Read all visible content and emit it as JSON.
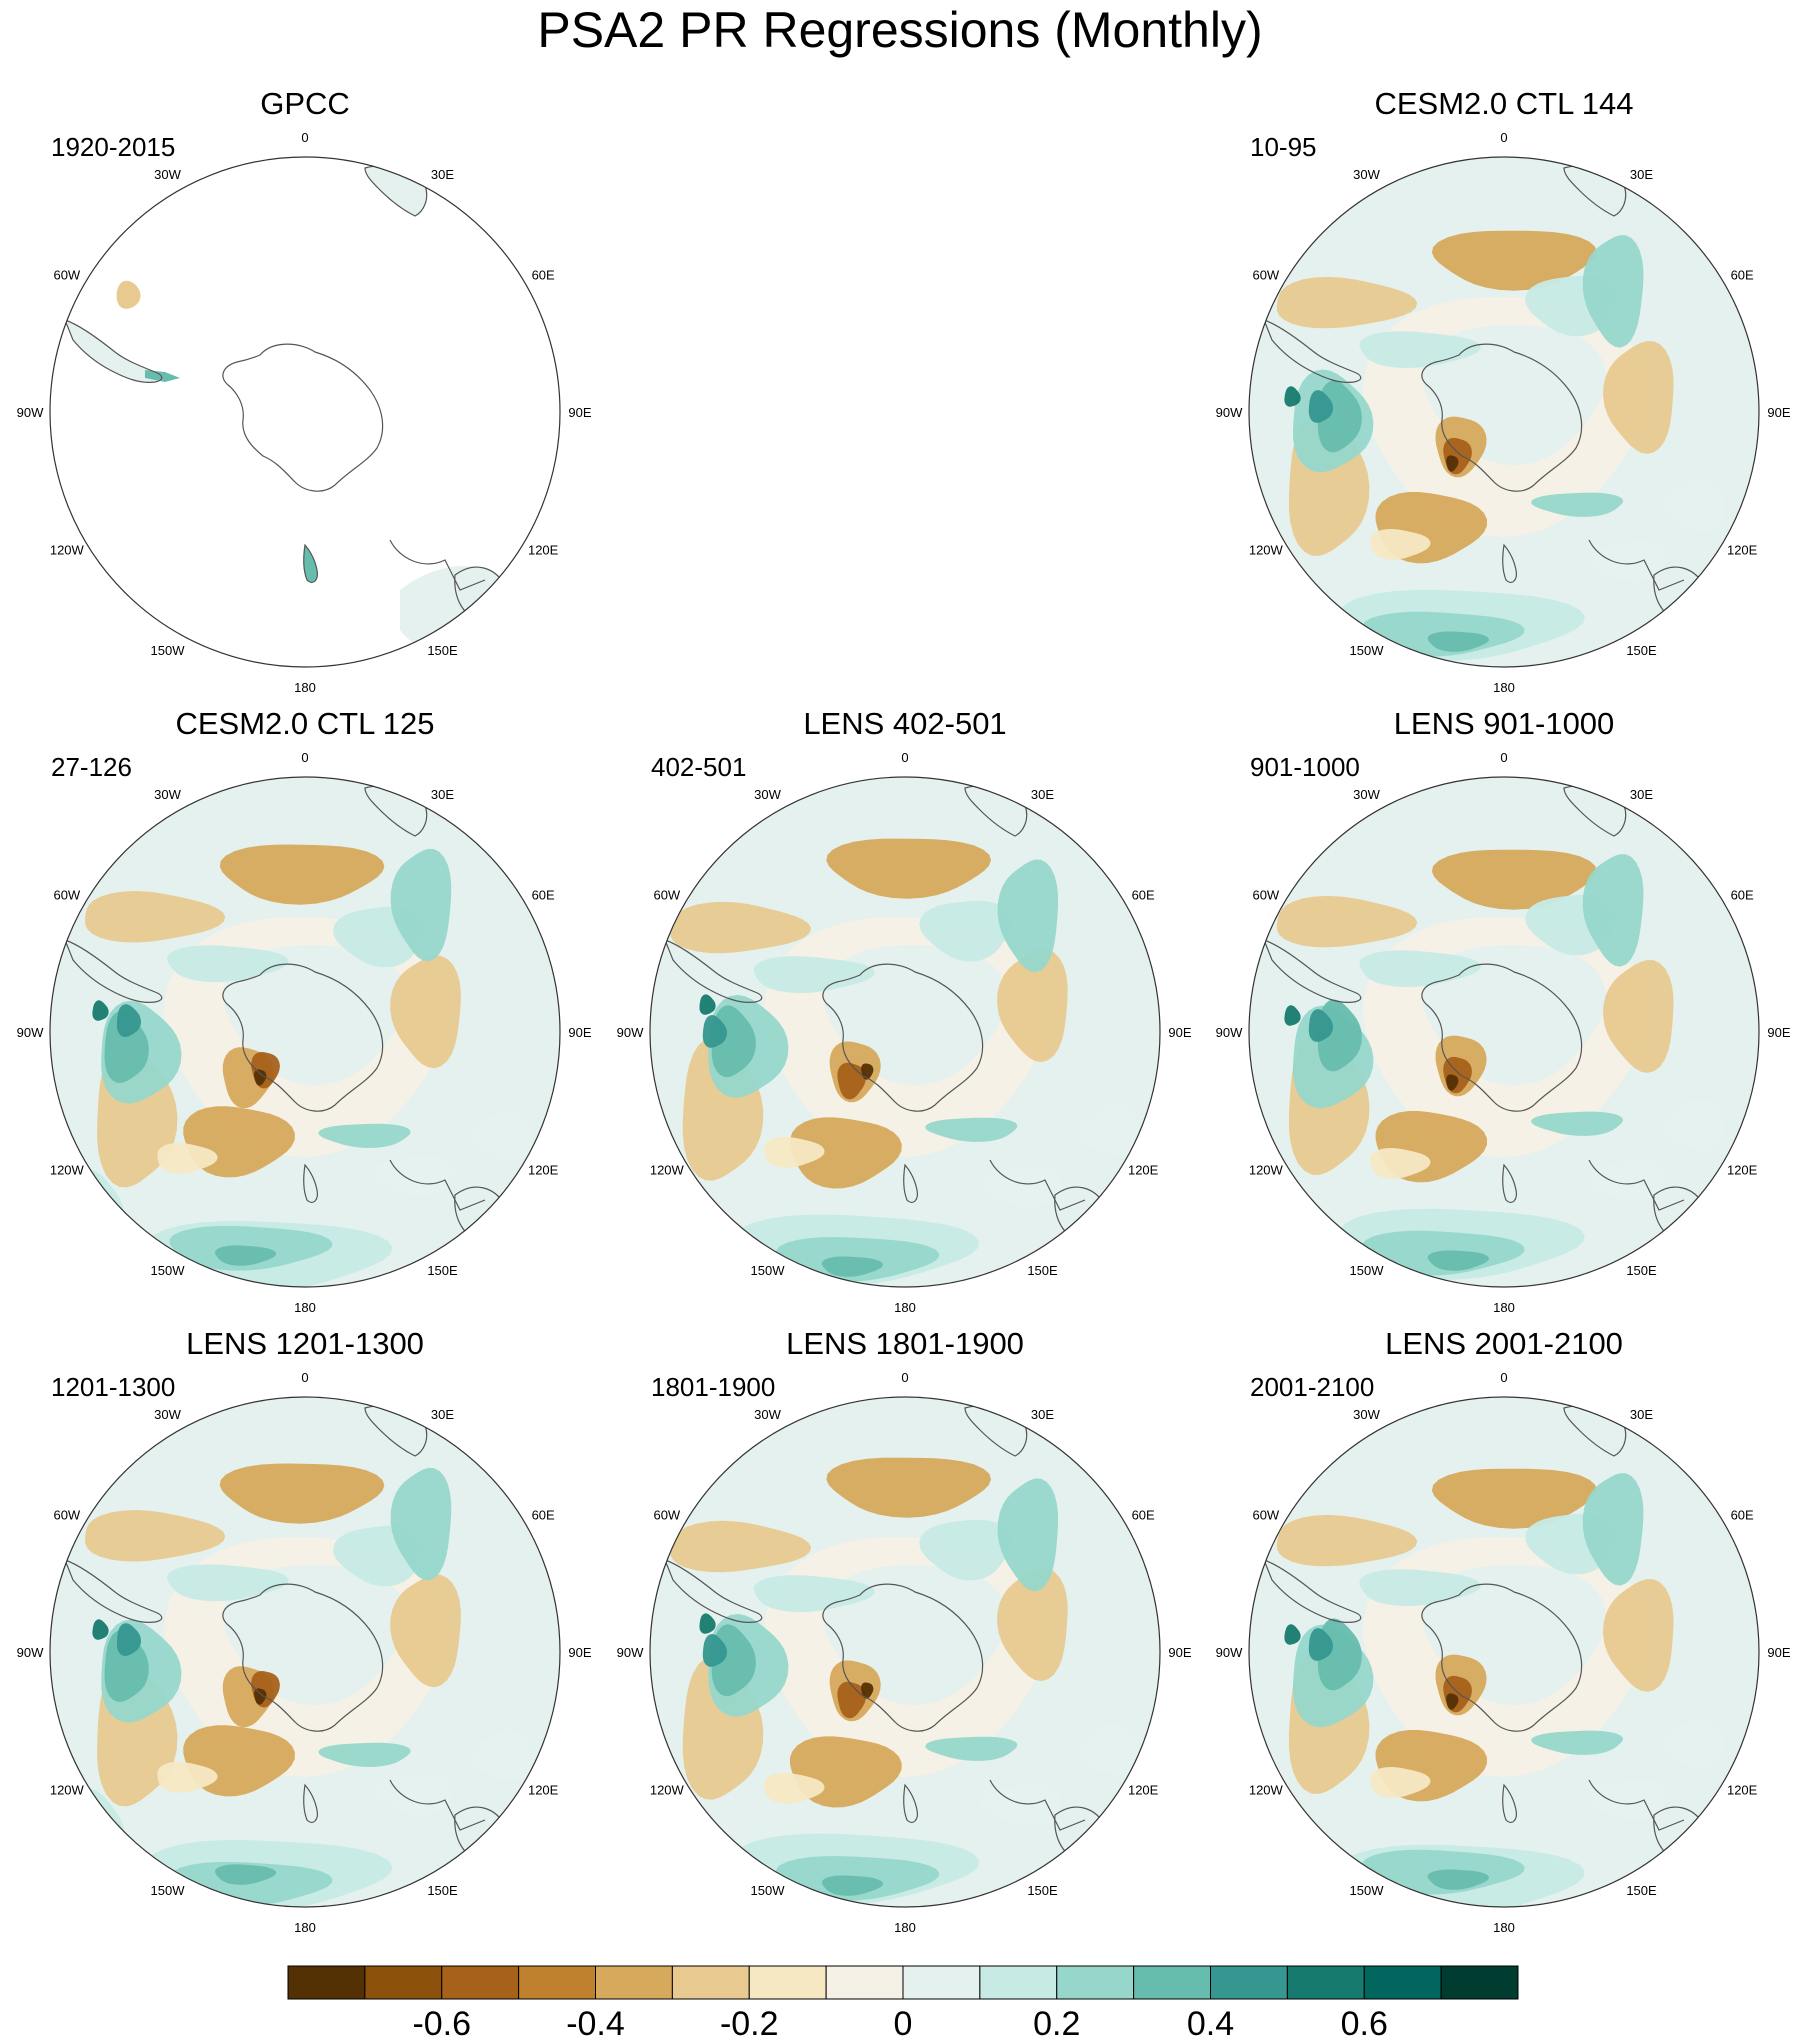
{
  "figure_title": "PSA2 PR Regressions (Monthly)",
  "chart_data": [
    {
      "type": "map",
      "projection": "south polar stereographic",
      "title": "GPCC",
      "period": "1920-2015",
      "data_coverage": "land only",
      "field": "PR regression onto PSA2"
    },
    {
      "type": "map",
      "projection": "south polar stereographic",
      "title": "CESM2.0 CTL 144",
      "period": "10-95",
      "field": "PR regression onto PSA2"
    },
    {
      "type": "map",
      "projection": "south polar stereographic",
      "title": "CESM2.0 CTL 125",
      "period": "27-126",
      "field": "PR regression onto PSA2"
    },
    {
      "type": "map",
      "projection": "south polar stereographic",
      "title": "LENS 402-501",
      "period": "402-501",
      "field": "PR regression onto PSA2"
    },
    {
      "type": "map",
      "projection": "south polar stereographic",
      "title": "LENS 901-1000",
      "period": "901-1000",
      "field": "PR regression onto PSA2"
    },
    {
      "type": "map",
      "projection": "south polar stereographic",
      "title": "LENS 1201-1300",
      "period": "1201-1300",
      "field": "PR regression onto PSA2"
    },
    {
      "type": "map",
      "projection": "south polar stereographic",
      "title": "LENS 1801-1900",
      "period": "1801-1900",
      "field": "PR regression onto PSA2"
    },
    {
      "type": "map",
      "projection": "south polar stereographic",
      "title": "LENS 2001-2100",
      "period": "2001-2100",
      "field": "PR regression onto PSA2"
    }
  ],
  "longitude_labels": [
    "0",
    "30E",
    "60E",
    "90E",
    "120E",
    "150E",
    "180",
    "150W",
    "120W",
    "90W",
    "60W",
    "30W"
  ],
  "colorbar": {
    "min": -0.8,
    "max": 0.8,
    "step": 0.1,
    "tick_labels": [
      "-0.6",
      "-0.4",
      "-0.2",
      "0",
      "0.2",
      "0.4",
      "0.6"
    ],
    "tick_values": [
      -0.6,
      -0.4,
      -0.2,
      0,
      0.2,
      0.4,
      0.6
    ],
    "colors": [
      "#543005",
      "#8c510a",
      "#a6611a",
      "#bf812d",
      "#d6a95c",
      "#e8c98f",
      "#f6e8c3",
      "#f5f1e6",
      "#e5f1ef",
      "#c7eae5",
      "#97d7cb",
      "#66bdad",
      "#35978f",
      "#167a6e",
      "#01665e",
      "#003c30"
    ]
  }
}
